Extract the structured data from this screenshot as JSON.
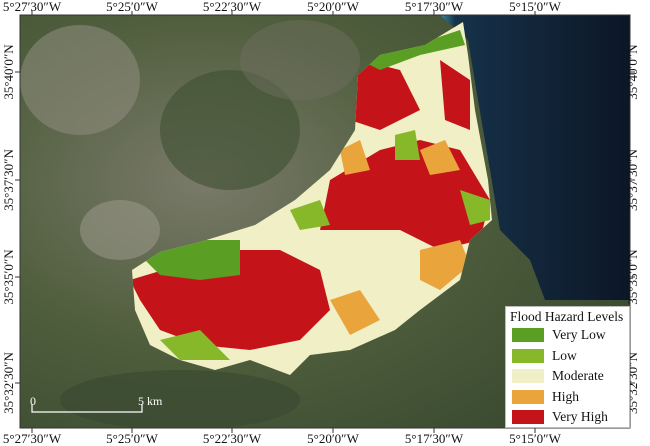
{
  "map": {
    "top_ticks": [
      "5°27′30″W",
      "5°25′0″W",
      "5°22′30″W",
      "5°20′0″W",
      "5°17′30″W",
      "5°15′0″W"
    ],
    "bottom_ticks": [
      "5°27′30″W",
      "5°25′0″W",
      "5°22′30″W",
      "5°20′0″W",
      "5°17′30″W",
      "5°15′0″W"
    ],
    "left_ticks": [
      "35°40′0″N",
      "35°37′30″N",
      "35°35′0″N",
      "35°32′30″N"
    ],
    "right_ticks": [
      "35°40′0″N",
      "35°37′30″N",
      "35°35′0″N",
      "35°32′30″N"
    ]
  },
  "legend": {
    "title": "Flood Hazard Levels",
    "items": [
      {
        "label": "Very Low",
        "color": "#5a9e23"
      },
      {
        "label": "Low",
        "color": "#86b82a"
      },
      {
        "label": "Moderate",
        "color": "#f1efc6"
      },
      {
        "label": "High",
        "color": "#e9a43c"
      },
      {
        "label": "Very High",
        "color": "#c4141a"
      }
    ]
  },
  "scale_bar": {
    "start": "0",
    "end": "5 km"
  },
  "colors": {
    "sea": "#0e1a2e",
    "land": "#4a5a3a"
  }
}
